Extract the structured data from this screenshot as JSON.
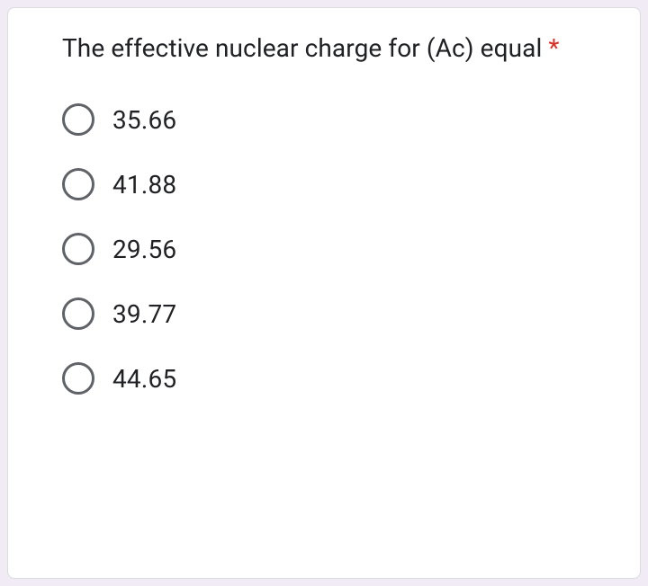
{
  "question": {
    "text": "The effective nuclear charge for (Ac) equal ",
    "required": true,
    "asterisk": "*"
  },
  "options": [
    {
      "label": "35.66"
    },
    {
      "label": "41.88"
    },
    {
      "label": "29.56"
    },
    {
      "label": "39.77"
    },
    {
      "label": "44.65"
    }
  ],
  "colors": {
    "background": "#f0ebf4",
    "card_background": "#ffffff",
    "card_border": "#dadce0",
    "text": "#202124",
    "required": "#d93025",
    "radio_border": "#5f6368"
  },
  "typography": {
    "question_fontsize": 28,
    "option_fontsize": 28,
    "font_family": "Roboto"
  }
}
